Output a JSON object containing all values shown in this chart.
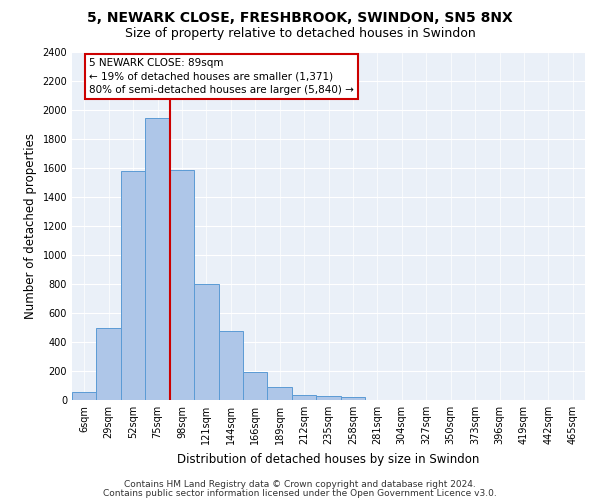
{
  "title_line1": "5, NEWARK CLOSE, FRESHBROOK, SWINDON, SN5 8NX",
  "title_line2": "Size of property relative to detached houses in Swindon",
  "xlabel": "Distribution of detached houses by size in Swindon",
  "ylabel": "Number of detached properties",
  "footer_line1": "Contains HM Land Registry data © Crown copyright and database right 2024.",
  "footer_line2": "Contains public sector information licensed under the Open Government Licence v3.0.",
  "categories": [
    "6sqm",
    "29sqm",
    "52sqm",
    "75sqm",
    "98sqm",
    "121sqm",
    "144sqm",
    "166sqm",
    "189sqm",
    "212sqm",
    "235sqm",
    "258sqm",
    "281sqm",
    "304sqm",
    "327sqm",
    "350sqm",
    "373sqm",
    "396sqm",
    "419sqm",
    "442sqm",
    "465sqm"
  ],
  "values": [
    55,
    500,
    1580,
    1950,
    1590,
    800,
    480,
    195,
    90,
    35,
    25,
    20,
    0,
    0,
    0,
    0,
    0,
    0,
    0,
    0,
    0
  ],
  "bar_color": "#aec6e8",
  "bar_edge_color": "#5b9bd5",
  "red_line_bin": 4,
  "annotation_text": "5 NEWARK CLOSE: 89sqm\n← 19% of detached houses are smaller (1,371)\n80% of semi-detached houses are larger (5,840) →",
  "annotation_box_color": "#ffffff",
  "annotation_box_edge": "#cc0000",
  "ylim": [
    0,
    2400
  ],
  "yticks": [
    0,
    200,
    400,
    600,
    800,
    1000,
    1200,
    1400,
    1600,
    1800,
    2000,
    2200,
    2400
  ],
  "plot_bg_color": "#eaf0f8",
  "grid_color": "#ffffff",
  "red_line_color": "#cc0000",
  "title_fontsize": 10,
  "subtitle_fontsize": 9,
  "axis_label_fontsize": 8.5,
  "tick_fontsize": 7,
  "annotation_fontsize": 7.5,
  "footer_fontsize": 6.5
}
